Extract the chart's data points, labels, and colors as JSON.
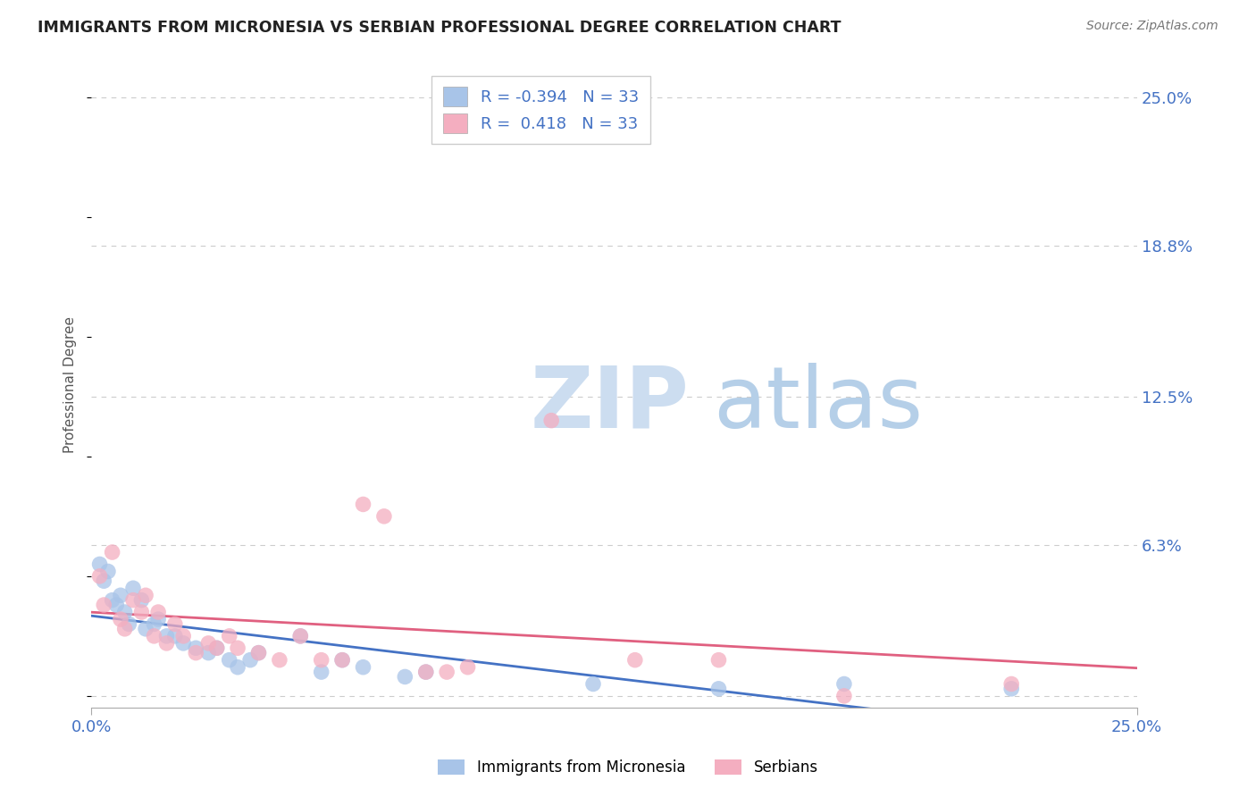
{
  "title": "IMMIGRANTS FROM MICRONESIA VS SERBIAN PROFESSIONAL DEGREE CORRELATION CHART",
  "source": "Source: ZipAtlas.com",
  "ylabel": "Professional Degree",
  "R1": "-0.394",
  "N1": "33",
  "R2": "0.418",
  "N2": "33",
  "color_blue": "#a8c4e8",
  "color_pink": "#f4aec0",
  "line_color_blue": "#4472c4",
  "line_color_pink": "#e06080",
  "background_color": "#ffffff",
  "title_color": "#222222",
  "axis_tick_color": "#4472c4",
  "legend_label1": "Immigrants from Micronesia",
  "legend_label2": "Serbians",
  "xmin": 0.0,
  "xmax": 0.25,
  "ymin": -0.005,
  "ymax": 0.265,
  "ytick_values": [
    0.0,
    0.063,
    0.125,
    0.188,
    0.25
  ],
  "ytick_labels": [
    "0.0%",
    "6.3%",
    "12.5%",
    "18.8%",
    "25.0%"
  ],
  "xtick_values": [
    0.0,
    0.25
  ],
  "xtick_labels": [
    "0.0%",
    "25.0%"
  ],
  "micronesia_x": [
    0.002,
    0.003,
    0.004,
    0.005,
    0.006,
    0.007,
    0.008,
    0.009,
    0.01,
    0.012,
    0.013,
    0.015,
    0.016,
    0.018,
    0.02,
    0.022,
    0.025,
    0.028,
    0.03,
    0.033,
    0.035,
    0.038,
    0.04,
    0.05,
    0.055,
    0.06,
    0.065,
    0.075,
    0.08,
    0.12,
    0.15,
    0.18,
    0.22
  ],
  "micronesia_y": [
    0.055,
    0.048,
    0.052,
    0.04,
    0.038,
    0.042,
    0.035,
    0.03,
    0.045,
    0.04,
    0.028,
    0.03,
    0.032,
    0.025,
    0.025,
    0.022,
    0.02,
    0.018,
    0.02,
    0.015,
    0.012,
    0.015,
    0.018,
    0.025,
    0.01,
    0.015,
    0.012,
    0.008,
    0.01,
    0.005,
    0.003,
    0.005,
    0.003
  ],
  "serbian_x": [
    0.002,
    0.003,
    0.005,
    0.007,
    0.008,
    0.01,
    0.012,
    0.013,
    0.015,
    0.016,
    0.018,
    0.02,
    0.022,
    0.025,
    0.028,
    0.03,
    0.033,
    0.035,
    0.04,
    0.045,
    0.05,
    0.055,
    0.06,
    0.065,
    0.07,
    0.08,
    0.085,
    0.09,
    0.11,
    0.13,
    0.15,
    0.18,
    0.22
  ],
  "serbian_y": [
    0.05,
    0.038,
    0.06,
    0.032,
    0.028,
    0.04,
    0.035,
    0.042,
    0.025,
    0.035,
    0.022,
    0.03,
    0.025,
    0.018,
    0.022,
    0.02,
    0.025,
    0.02,
    0.018,
    0.015,
    0.025,
    0.015,
    0.015,
    0.08,
    0.075,
    0.01,
    0.01,
    0.012,
    0.115,
    0.015,
    0.015,
    0.0,
    0.005
  ],
  "watermark_text": "ZIPatlas",
  "watermark_zip_color": "#d5e5f5",
  "watermark_atlas_color": "#b0c8e8"
}
